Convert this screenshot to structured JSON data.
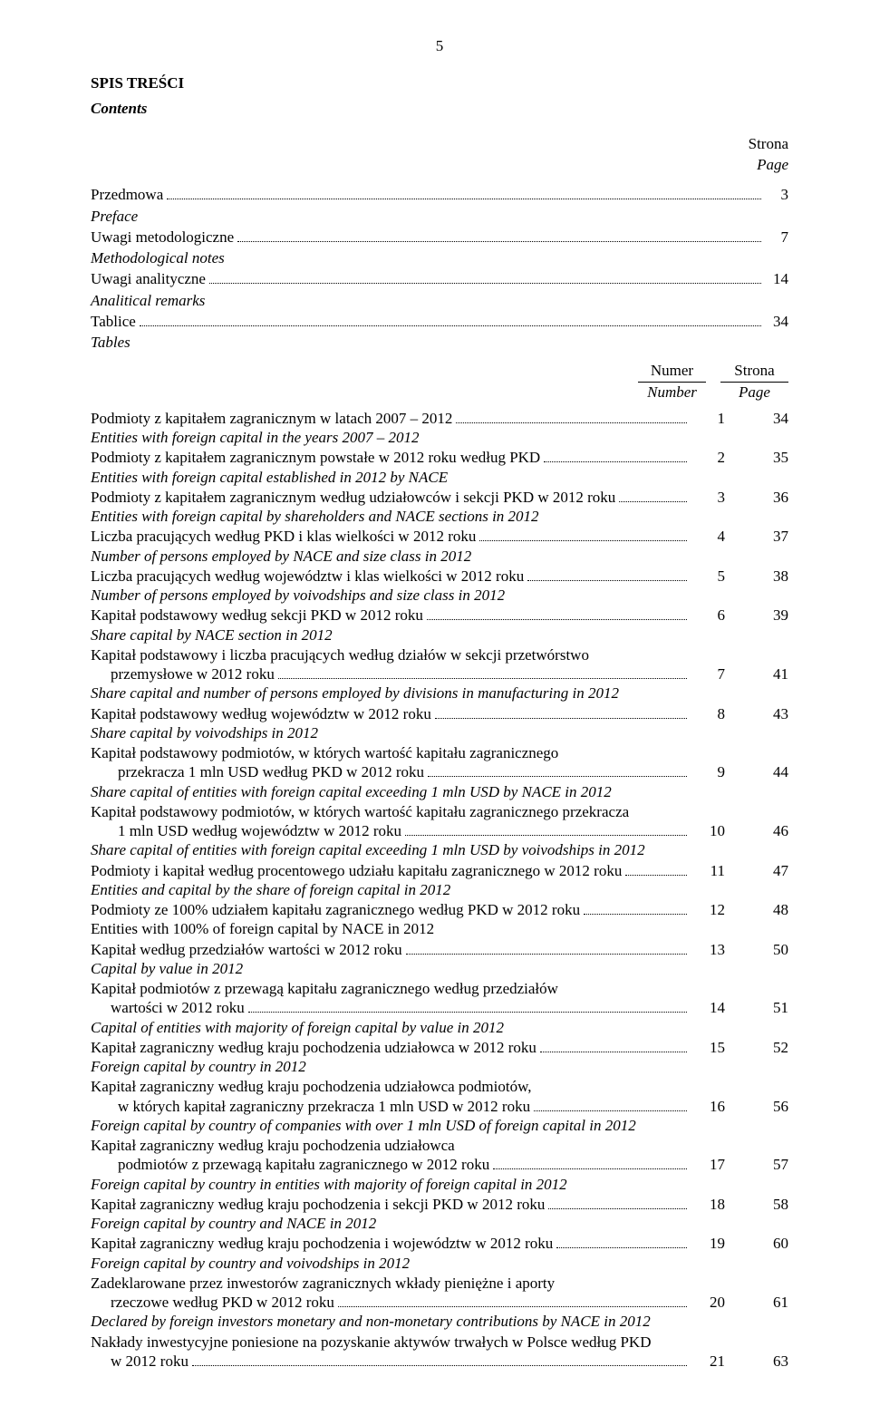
{
  "page_number_top": "5",
  "heading_pl": "SPIS TREŚCI",
  "heading_en": "Contents",
  "right_labels": {
    "strona": "Strona",
    "page": "Page",
    "numer": "Numer",
    "number": "Number"
  },
  "front_matter": [
    {
      "pl": "Przedmowa",
      "en": "Preface",
      "page": "3"
    },
    {
      "pl": "Uwagi metodologiczne",
      "en": "Methodological notes",
      "page": "7"
    },
    {
      "pl": "Uwagi analityczne",
      "en": "Analitical remarks",
      "page": "14"
    },
    {
      "pl": "Tablice",
      "en": "Tables",
      "page": "34"
    }
  ],
  "toc": [
    {
      "pl_lines": [
        "Podmioty z kapitałem zagranicznym w latach 2007 – 2012"
      ],
      "en": "Entities with foreign capital in the years 2007 – 2012",
      "num": "1",
      "page": "34"
    },
    {
      "pl_lines": [
        "Podmioty z kapitałem zagranicznym powstałe w 2012 roku według PKD"
      ],
      "en": "Entities with foreign capital established in 2012 by NACE",
      "num": "2",
      "page": "35"
    },
    {
      "pl_lines": [
        "Podmioty z kapitałem zagranicznym według udziałowców i sekcji PKD w 2012 roku"
      ],
      "en": "Entities with foreign capital by shareholders and NACE sections in 2012",
      "num": "3",
      "page": "36"
    },
    {
      "pl_lines": [
        "Liczba pracujących według PKD i klas wielkości w 2012 roku"
      ],
      "en": "Number of persons employed by NACE and size class in 2012",
      "num": "4",
      "page": "37"
    },
    {
      "pl_lines": [
        "Liczba pracujących według województw i klas wielkości w 2012 roku"
      ],
      "en": "Number of persons employed by voivodships and size class in 2012",
      "num": "5",
      "page": "38"
    },
    {
      "pl_lines": [
        "Kapitał podstawowy według sekcji PKD w 2012 roku"
      ],
      "en": "Share capital by NACE section in 2012",
      "num": "6",
      "page": "39"
    },
    {
      "pl_lines": [
        "Kapitał podstawowy i liczba pracujących według działów w sekcji przetwórstwo",
        "przemysłowe w 2012 roku"
      ],
      "en": "Share capital and number of persons employed by divisions in manufacturing in 2012",
      "num": "7",
      "page": "41"
    },
    {
      "pl_lines": [
        "Kapitał podstawowy według województw w 2012 roku"
      ],
      "en": "Share capital by voivodships in 2012",
      "num": "8",
      "page": "43"
    },
    {
      "pl_lines": [
        "Kapitał podstawowy podmiotów, w których wartość kapitału zagranicznego",
        "przekracza 1 mln USD według PKD w 2012 roku"
      ],
      "cont_indent": "cont-indent2",
      "en": "Share capital of entities with foreign capital exceeding 1 mln USD by NACE in 2012",
      "num": "9",
      "page": "44"
    },
    {
      "pl_lines": [
        "Kapitał podstawowy podmiotów, w których wartość kapitału zagranicznego przekracza",
        "1 mln USD według województw w 2012 roku"
      ],
      "cont_indent": "cont-indent2",
      "en": "Share capital of entities with foreign capital exceeding 1 mln USD by voivodships in 2012",
      "num": "10",
      "page": "46"
    },
    {
      "pl_lines": [
        "Podmioty i kapitał według procentowego udziału kapitału zagranicznego w 2012 roku"
      ],
      "en": "Entities and capital by the share of foreign capital in 2012",
      "num": "11",
      "page": "47"
    },
    {
      "pl_lines": [
        "Podmioty ze 100% udziałem kapitału zagranicznego według PKD w 2012 roku"
      ],
      "en": "Entities with 100% of foreign capital by NACE in 2012",
      "en_italic": false,
      "num": "12",
      "page": "48"
    },
    {
      "pl_lines": [
        "Kapitał według przedziałów wartości w 2012 roku"
      ],
      "en": "Capital by value in 2012",
      "num": "13",
      "page": "50"
    },
    {
      "pl_lines": [
        "Kapitał podmiotów z przewagą kapitału zagranicznego według przedziałów",
        "wartości w 2012 roku"
      ],
      "en": "Capital of entities with majority of foreign capital by value in 2012",
      "num": "14",
      "page": "51"
    },
    {
      "pl_lines": [
        "Kapitał zagraniczny według kraju pochodzenia udziałowca w 2012 roku"
      ],
      "en": "Foreign capital by country in 2012",
      "num": "15",
      "page": "52"
    },
    {
      "pl_lines": [
        "Kapitał zagraniczny według kraju pochodzenia udziałowca podmiotów,",
        "w których kapitał zagraniczny przekracza 1 mln USD w 2012 roku"
      ],
      "cont_indent": "cont-indent2",
      "en": "Foreign capital by country of companies with over 1 mln USD of  foreign capital in 2012",
      "num": "16",
      "page": "56"
    },
    {
      "pl_lines": [
        "Kapitał zagraniczny według kraju pochodzenia udziałowca",
        "podmiotów z przewagą kapitału zagranicznego w 2012 roku"
      ],
      "cont_indent": "cont-indent2",
      "en": "Foreign capital by country in entities with majority of foreign capital in 2012",
      "num": "17",
      "page": "57"
    },
    {
      "pl_lines": [
        "Kapitał zagraniczny według kraju pochodzenia i sekcji PKD w 2012 roku"
      ],
      "en": "Foreign capital by country and NACE in 2012",
      "num": "18",
      "page": "58"
    },
    {
      "pl_lines": [
        "Kapitał zagraniczny według kraju pochodzenia i województw w 2012 roku"
      ],
      "en": "Foreign capital by country and voivodships in 2012",
      "num": "19",
      "page": "60"
    },
    {
      "pl_lines": [
        "Zadeklarowane przez inwestorów zagranicznych wkłady pieniężne i aporty",
        "rzeczowe według PKD w 2012 roku"
      ],
      "en": "Declared by foreign investors monetary and non-monetary contributions by NACE in 2012",
      "num": "20",
      "page": "61"
    },
    {
      "pl_lines": [
        "Nakłady inwestycyjne poniesione na pozyskanie aktywów trwałych w Polsce według PKD",
        "w 2012 roku"
      ],
      "en": "",
      "num": "21",
      "page": "63"
    }
  ],
  "colors": {
    "text": "#000000",
    "background": "#ffffff"
  },
  "typography": {
    "font_family": "Times New Roman",
    "base_pt": 12,
    "heading_weight": "bold",
    "italic_for_english": true
  }
}
